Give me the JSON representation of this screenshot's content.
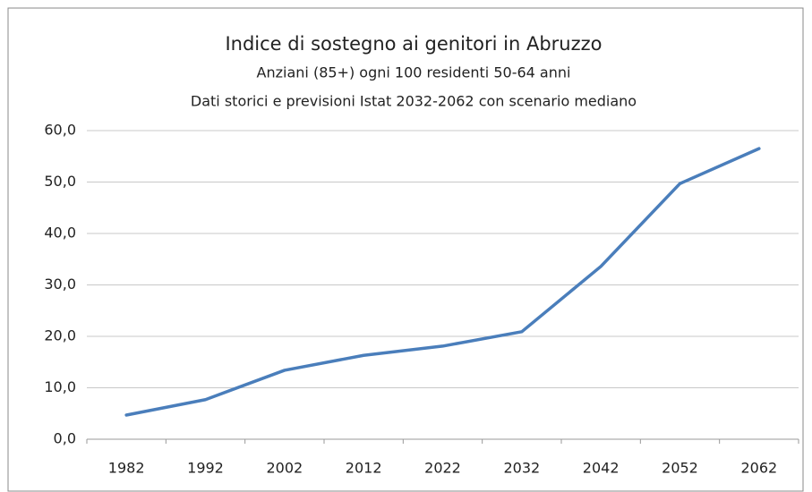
{
  "chart_data": {
    "type": "line",
    "title": "Indice di sostegno ai genitori in Abruzzo",
    "subtitle": "Anziani (85+) ogni 100 residenti 50-64 anni",
    "subtitle2": "Dati storici e previsioni Istat 2032-2062 con scenario mediano",
    "categories": [
      "1982",
      "1992",
      "2002",
      "2012",
      "2022",
      "2032",
      "2042",
      "2052",
      "2062"
    ],
    "values": [
      4.7,
      7.7,
      13.4,
      16.3,
      18.1,
      20.9,
      33.6,
      49.7,
      56.5
    ],
    "color": "#4a7ebb",
    "ylim": [
      0,
      60
    ],
    "yticks": [
      {
        "value": 0,
        "label": "0,0"
      },
      {
        "value": 10,
        "label": "10,0"
      },
      {
        "value": 20,
        "label": "20,0"
      },
      {
        "value": 30,
        "label": "30,0"
      },
      {
        "value": 40,
        "label": "40,0"
      },
      {
        "value": 50,
        "label": "50,0"
      },
      {
        "value": 60,
        "label": "60,0"
      }
    ],
    "grid": true
  }
}
